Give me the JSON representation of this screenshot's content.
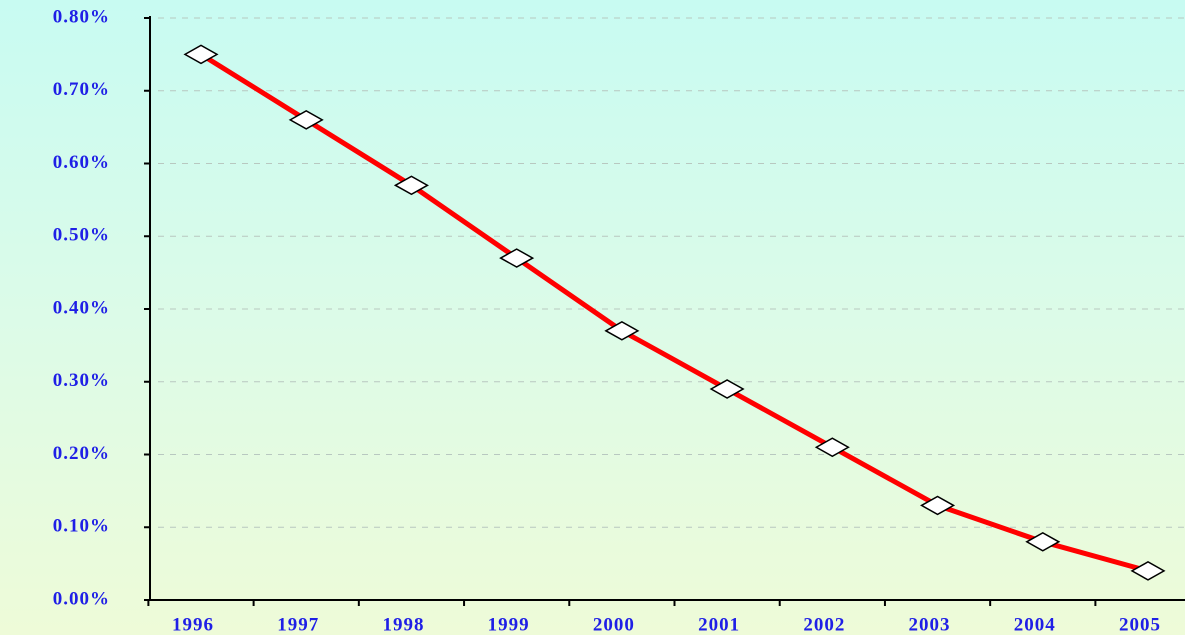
{
  "chart_data": {
    "type": "line",
    "categories": [
      "1996",
      "1997",
      "1998",
      "1999",
      "2000",
      "2001",
      "2002",
      "2003",
      "2004",
      "2005"
    ],
    "series": [
      {
        "color": "#ff0000",
        "values": [
          0.75,
          0.66,
          0.57,
          0.47,
          0.37,
          0.29,
          0.21,
          0.13,
          0.08,
          0.04
        ]
      }
    ],
    "ylim": [
      0,
      0.8
    ],
    "yticks": [
      {
        "value": 0,
        "label": "0.00%"
      },
      {
        "value": 0.1,
        "label": "0.10%"
      },
      {
        "value": 0.2,
        "label": "0.20%"
      },
      {
        "value": 0.3,
        "label": "0.30%"
      },
      {
        "value": 0.4,
        "label": "0.40%"
      },
      {
        "value": 0.5,
        "label": "0.50%"
      },
      {
        "value": 0.6,
        "label": "0.60%"
      },
      {
        "value": 0.7,
        "label": "0.70%"
      },
      {
        "value": 0.8,
        "label": "0.80%"
      }
    ],
    "grid": true
  }
}
